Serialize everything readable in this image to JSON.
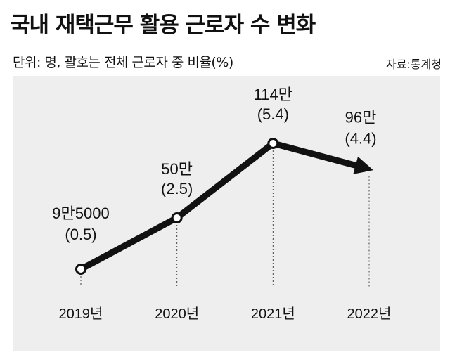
{
  "title": "국내 재택근무 활용 근로자 수 변화",
  "unit_note": "단위: 명, 괄호는 전체 근로자 중 비율(%)",
  "source": "자료:통계청",
  "colors": {
    "line": "#111111",
    "panel": "#eeeeee",
    "marker_fill": "#ffffff"
  },
  "chart_data": {
    "type": "line",
    "title": "국내 재택근무 활용 근로자 수 변화",
    "categories": [
      "2019년",
      "2020년",
      "2021년",
      "2022년"
    ],
    "x": [
      2019,
      2020,
      2021,
      2022
    ],
    "series": [
      {
        "values": [
          95000,
          500000,
          1140000,
          960000
        ],
        "ratio_percent": [
          0.5,
          2.5,
          5.4,
          4.4
        ],
        "labels": [
          "9만5000",
          "50만",
          "114만",
          "96만"
        ],
        "ratio_labels": [
          "(0.5)",
          "(2.5)",
          "(5.4)",
          "(4.4)"
        ]
      }
    ],
    "last_point_marker": "arrow",
    "grid": false,
    "legend": "none"
  }
}
